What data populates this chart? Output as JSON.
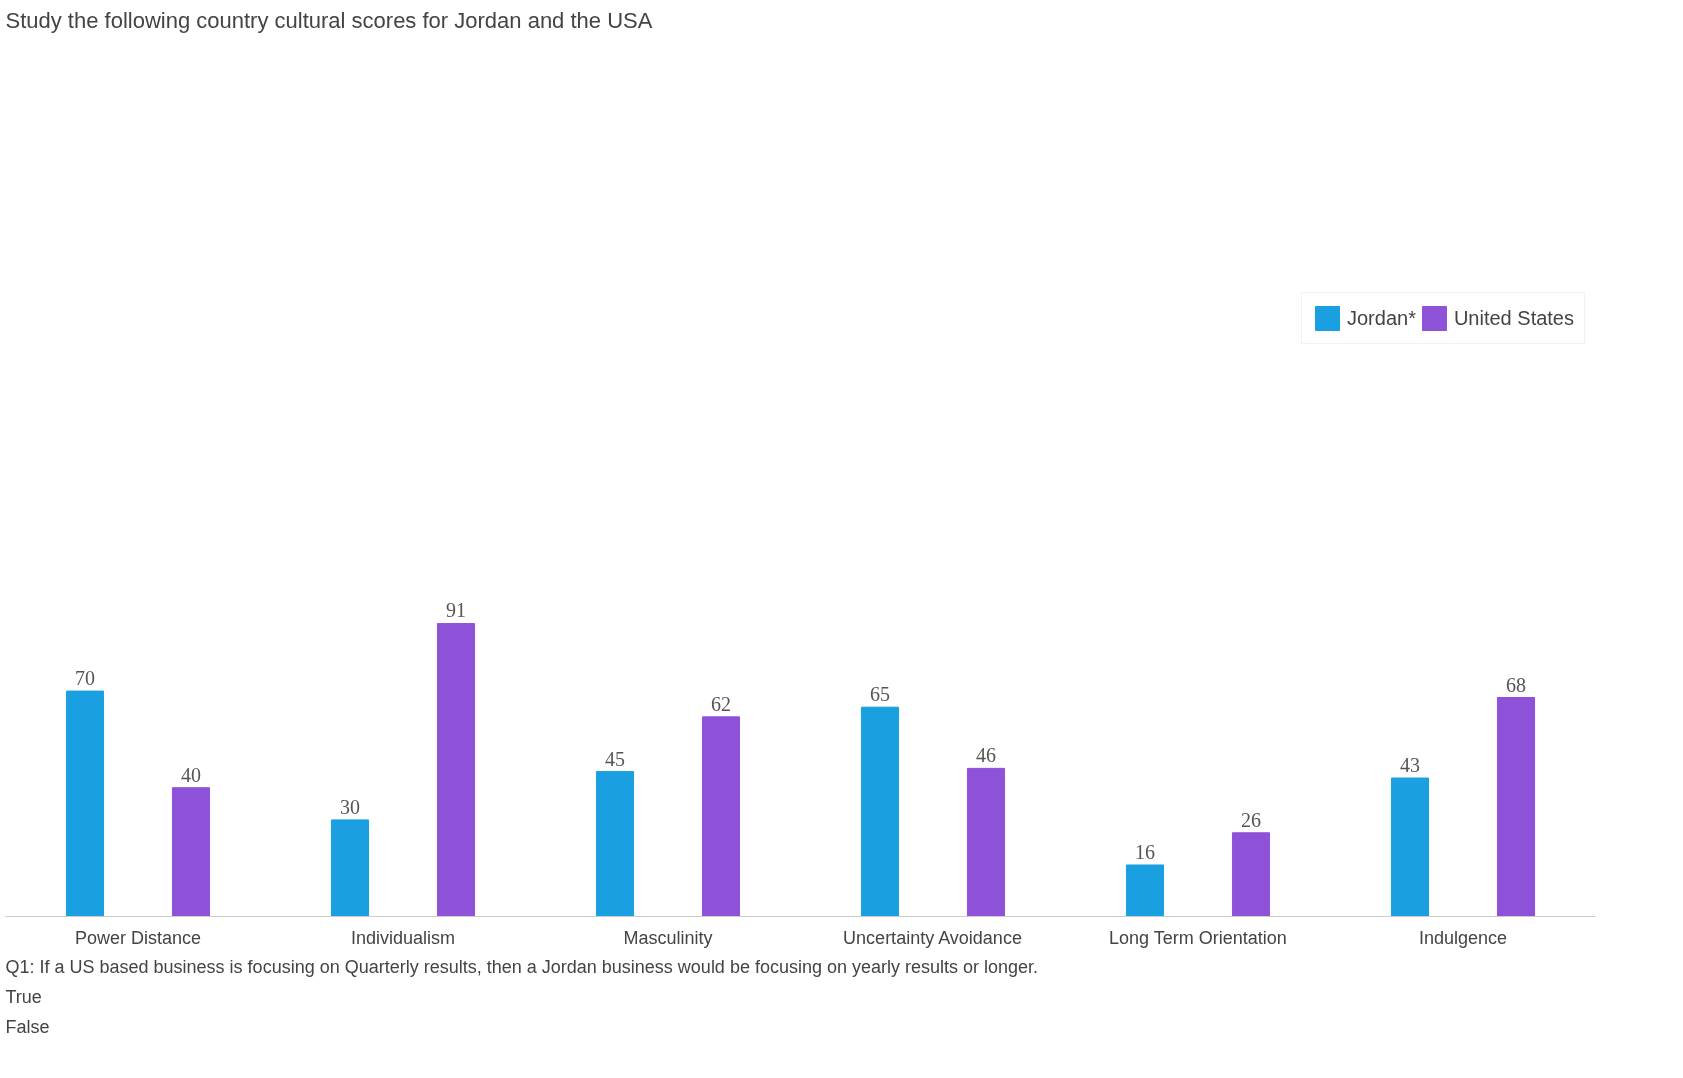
{
  "chart_data": {
    "type": "bar",
    "title": "Study the following country cultural scores for Jordan and the USA",
    "categories": [
      "Power Distance",
      "Individualism",
      "Masculinity",
      "Uncertainty Avoidance",
      "Long Term Orientation",
      "Indulgence"
    ],
    "series": [
      {
        "name": "Jordan*",
        "color": "#1a9fe0",
        "values": [
          70,
          30,
          45,
          65,
          16,
          43
        ]
      },
      {
        "name": "United States",
        "color": "#8e52d9",
        "values": [
          40,
          91,
          62,
          46,
          26,
          68
        ]
      }
    ],
    "data_labels": true,
    "legend": "top",
    "grid": false,
    "tick_labels": "x",
    "annotations": [
      "Q1: If a US based business is focusing on Quarterly results, then a Jordan business would be focusing on yearly results or longer.",
      "True",
      "False"
    ]
  }
}
